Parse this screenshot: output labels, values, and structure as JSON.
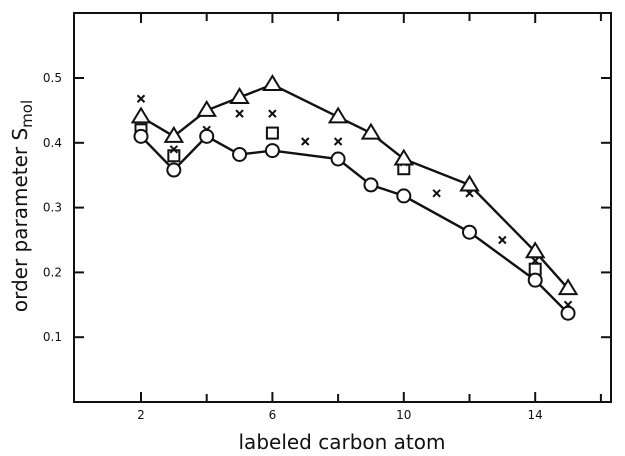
{
  "chart_data": {
    "type": "line",
    "xlabel": "labeled carbon atom",
    "ylabel": "order parameter S",
    "ylabel_subscript": "mol",
    "xlim": [
      0,
      17
    ],
    "ylim": [
      0,
      0.5
    ],
    "x_ticks": [
      2,
      6,
      10,
      14
    ],
    "x_minor_ticks": [
      4,
      8,
      12,
      16
    ],
    "y_ticks": [
      0.1,
      0.2,
      0.3,
      0.4,
      0.5
    ],
    "y_tick_labels": [
      "0.1",
      "0.2",
      "0.3",
      "0.4",
      "0.5"
    ],
    "grid": false,
    "series": [
      {
        "marker": "triangle",
        "connected": true,
        "x": [
          2,
          3,
          4,
          5,
          6,
          8,
          9,
          10,
          12,
          14,
          15
        ],
        "y": [
          0.44,
          0.41,
          0.45,
          0.47,
          0.49,
          0.44,
          0.415,
          0.375,
          0.335,
          0.232,
          0.175
        ]
      },
      {
        "marker": "circle",
        "connected": true,
        "x": [
          2,
          3,
          4,
          5,
          6,
          8,
          9,
          10,
          12,
          14,
          15
        ],
        "y": [
          0.41,
          0.358,
          0.41,
          0.382,
          0.388,
          0.375,
          0.335,
          0.318,
          0.262,
          0.188,
          0.137
        ]
      },
      {
        "marker": "square",
        "connected": false,
        "x": [
          2,
          3,
          6,
          10,
          14
        ],
        "y": [
          0.42,
          0.38,
          0.415,
          0.36,
          0.205
        ]
      },
      {
        "marker": "cross",
        "connected": false,
        "x": [
          2,
          3,
          4,
          5,
          6,
          7,
          8,
          10,
          11,
          12,
          13,
          14,
          15
        ],
        "y": [
          0.468,
          0.39,
          0.42,
          0.445,
          0.445,
          0.402,
          0.402,
          0.37,
          0.322,
          0.322,
          0.25,
          0.218,
          0.15
        ]
      }
    ]
  }
}
